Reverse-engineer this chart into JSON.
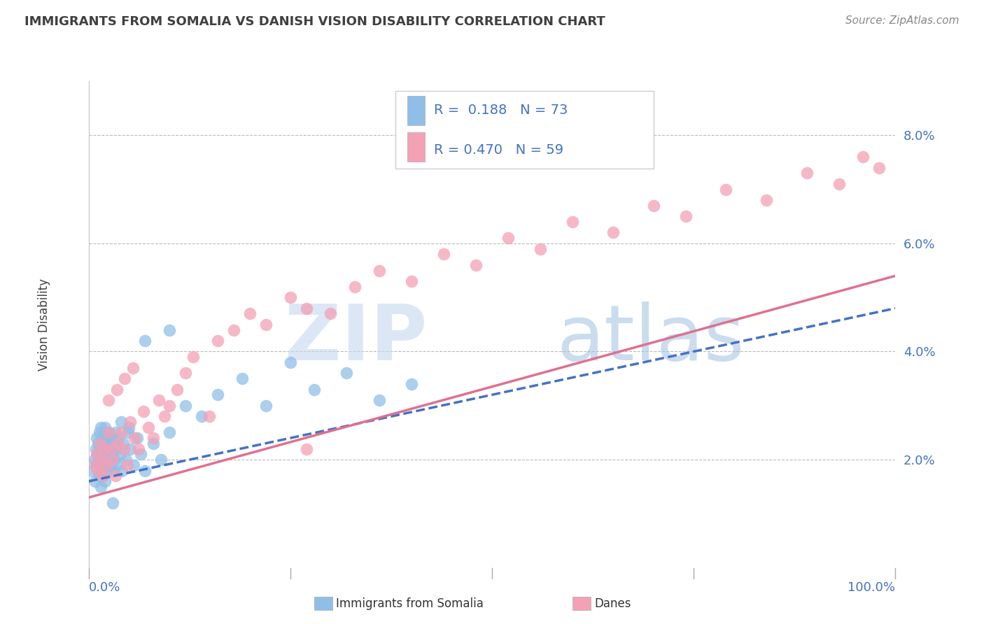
{
  "title": "IMMIGRANTS FROM SOMALIA VS DANISH VISION DISABILITY CORRELATION CHART",
  "source_text": "Source: ZipAtlas.com",
  "ylabel": "Vision Disability",
  "legend_label1": "Immigrants from Somalia",
  "legend_label2": "Danes",
  "R1": 0.188,
  "N1": 73,
  "R2": 0.47,
  "N2": 59,
  "color_blue": "#8fbfe8",
  "color_pink": "#f4a0b5",
  "color_blue_line": "#4472c4",
  "color_pink_line": "#e07090",
  "color_blue_text": "#4472c4",
  "color_title": "#404040",
  "color_source": "#888888",
  "xlim": [
    0,
    1.0
  ],
  "ylim": [
    0.0,
    0.09
  ],
  "yticks": [
    0.02,
    0.04,
    0.06,
    0.08
  ],
  "ytick_labels": [
    "2.0%",
    "4.0%",
    "6.0%",
    "8.0%"
  ],
  "blue_scatter_x": [
    0.005,
    0.007,
    0.008,
    0.009,
    0.01,
    0.01,
    0.011,
    0.012,
    0.012,
    0.013,
    0.013,
    0.014,
    0.014,
    0.015,
    0.015,
    0.015,
    0.016,
    0.016,
    0.017,
    0.017,
    0.018,
    0.018,
    0.019,
    0.019,
    0.02,
    0.02,
    0.021,
    0.021,
    0.022,
    0.022,
    0.023,
    0.024,
    0.025,
    0.025,
    0.026,
    0.027,
    0.028,
    0.029,
    0.03,
    0.031,
    0.032,
    0.033,
    0.034,
    0.035,
    0.037,
    0.039,
    0.041,
    0.043,
    0.046,
    0.049,
    0.052,
    0.056,
    0.06,
    0.065,
    0.07,
    0.08,
    0.09,
    0.1,
    0.12,
    0.14,
    0.16,
    0.19,
    0.22,
    0.25,
    0.28,
    0.32,
    0.36,
    0.4,
    0.1,
    0.07,
    0.05,
    0.04,
    0.03
  ],
  "blue_scatter_y": [
    0.018,
    0.02,
    0.016,
    0.022,
    0.019,
    0.024,
    0.021,
    0.018,
    0.023,
    0.02,
    0.025,
    0.017,
    0.022,
    0.019,
    0.026,
    0.015,
    0.021,
    0.018,
    0.023,
    0.02,
    0.017,
    0.024,
    0.021,
    0.019,
    0.026,
    0.016,
    0.022,
    0.019,
    0.024,
    0.021,
    0.018,
    0.023,
    0.02,
    0.025,
    0.022,
    0.019,
    0.024,
    0.021,
    0.018,
    0.023,
    0.02,
    0.025,
    0.022,
    0.019,
    0.024,
    0.021,
    0.018,
    0.023,
    0.02,
    0.025,
    0.022,
    0.019,
    0.024,
    0.021,
    0.018,
    0.023,
    0.02,
    0.025,
    0.03,
    0.028,
    0.032,
    0.035,
    0.03,
    0.038,
    0.033,
    0.036,
    0.031,
    0.034,
    0.044,
    0.042,
    0.026,
    0.027,
    0.012
  ],
  "pink_scatter_x": [
    0.008,
    0.01,
    0.012,
    0.014,
    0.016,
    0.018,
    0.02,
    0.022,
    0.025,
    0.028,
    0.03,
    0.033,
    0.036,
    0.04,
    0.044,
    0.048,
    0.052,
    0.057,
    0.062,
    0.068,
    0.074,
    0.08,
    0.087,
    0.094,
    0.1,
    0.11,
    0.12,
    0.13,
    0.15,
    0.16,
    0.18,
    0.2,
    0.22,
    0.25,
    0.27,
    0.3,
    0.33,
    0.36,
    0.4,
    0.44,
    0.48,
    0.52,
    0.56,
    0.6,
    0.65,
    0.7,
    0.74,
    0.79,
    0.84,
    0.89,
    0.93,
    0.96,
    0.98,
    0.025,
    0.035,
    0.045,
    0.055,
    0.27,
    0.42
  ],
  "pink_scatter_y": [
    0.019,
    0.021,
    0.018,
    0.023,
    0.02,
    0.017,
    0.022,
    0.019,
    0.025,
    0.022,
    0.02,
    0.017,
    0.023,
    0.025,
    0.022,
    0.019,
    0.027,
    0.024,
    0.022,
    0.029,
    0.026,
    0.024,
    0.031,
    0.028,
    0.03,
    0.033,
    0.036,
    0.039,
    0.028,
    0.042,
    0.044,
    0.047,
    0.045,
    0.05,
    0.048,
    0.047,
    0.052,
    0.055,
    0.053,
    0.058,
    0.056,
    0.061,
    0.059,
    0.064,
    0.062,
    0.067,
    0.065,
    0.07,
    0.068,
    0.073,
    0.071,
    0.076,
    0.074,
    0.031,
    0.033,
    0.035,
    0.037,
    0.022,
    0.082
  ],
  "blue_line_x0": 0.0,
  "blue_line_x1": 1.0,
  "blue_line_y0": 0.016,
  "blue_line_y1": 0.048,
  "pink_line_x0": 0.0,
  "pink_line_x1": 1.0,
  "pink_line_y0": 0.013,
  "pink_line_y1": 0.054,
  "watermark_zip": "ZIP",
  "watermark_atlas": "atlas",
  "watermark_color_zip": "#c5d8f0",
  "watermark_color_atlas": "#a0c0e0"
}
